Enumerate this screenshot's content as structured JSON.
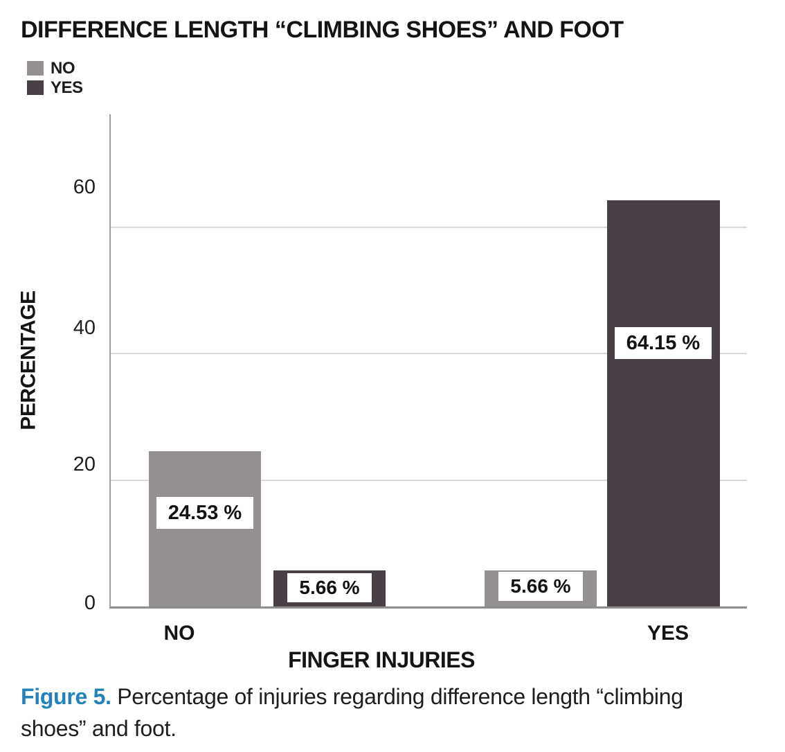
{
  "chart_data": {
    "type": "bar",
    "title": "DIFFERENCE LENGTH “CLIMBING SHOES” AND FOOT",
    "xlabel": "FINGER INJURIES",
    "ylabel": "PERCENTAGE",
    "categories": [
      "NO",
      "YES"
    ],
    "series": [
      {
        "name": "NO",
        "color": "#959192",
        "values": [
          24.53,
          5.66
        ]
      },
      {
        "name": "YES",
        "color": "#494047",
        "values": [
          5.66,
          64.15
        ]
      }
    ],
    "value_labels": {
      "no_no": "24.53 %",
      "no_yes": "5.66 %",
      "yes_no": "5.66 %",
      "yes_yes": "64.15 %"
    },
    "yticks": [
      0,
      20,
      40,
      60
    ],
    "ylim": [
      0,
      77.7
    ],
    "grid": "horizontal",
    "legend_position": "top-left",
    "colors": {
      "grid": "#d9d9d9",
      "axis": "#8d8d8d"
    }
  },
  "caption": {
    "prefix": "Figure 5.",
    "line1": " Percentage of injuries regarding difference length “climbing",
    "line2": "shoes” and foot."
  }
}
